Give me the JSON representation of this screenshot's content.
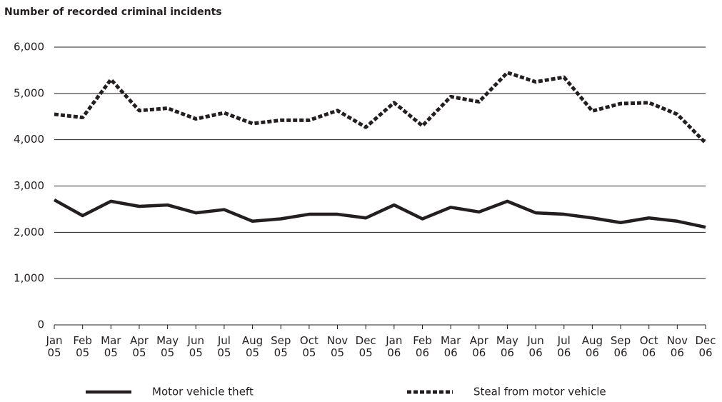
{
  "chart_data": {
    "type": "line",
    "title": "Number of recorded criminal incidents",
    "categories": [
      "Jan 05",
      "Feb 05",
      "Mar 05",
      "Apr 05",
      "May 05",
      "Jun 05",
      "Jul 05",
      "Aug 05",
      "Sep 05",
      "Oct 05",
      "Nov 05",
      "Dec 05",
      "Jan 06",
      "Feb 06",
      "Mar 06",
      "Apr 06",
      "May 06",
      "Jun 06",
      "Jul 06",
      "Aug 06",
      "Sep 06",
      "Oct 06",
      "Nov 06",
      "Dec 06"
    ],
    "series": [
      {
        "name": "Motor vehicle theft",
        "color": "#231f20",
        "dashed": false,
        "values": [
          2700,
          2360,
          2670,
          2560,
          2590,
          2420,
          2490,
          2240,
          2290,
          2390,
          2390,
          2310,
          2590,
          2290,
          2540,
          2440,
          2670,
          2420,
          2390,
          2310,
          2210,
          2310,
          2240,
          2110
        ]
      },
      {
        "name": "Steal from motor vehicle",
        "color": "#231f20",
        "dashed": true,
        "values": [
          4550,
          4480,
          5300,
          4630,
          4680,
          4450,
          4580,
          4350,
          4420,
          4420,
          4630,
          4270,
          4800,
          4300,
          4930,
          4820,
          5450,
          5250,
          5350,
          4620,
          4780,
          4800,
          4550,
          3930
        ]
      }
    ],
    "ylim": [
      0,
      6000
    ],
    "yticks": [
      0,
      {
        "value": 1000,
        "label": "1,000"
      },
      {
        "value": 2000,
        "label": "2,000"
      },
      {
        "value": 3000,
        "label": "3,000"
      },
      {
        "value": 4000,
        "label": "4,000"
      },
      {
        "value": 5000,
        "label": "5,000"
      },
      {
        "value": 6000,
        "label": "6,000"
      }
    ],
    "grid": true,
    "legend": "bottom"
  }
}
